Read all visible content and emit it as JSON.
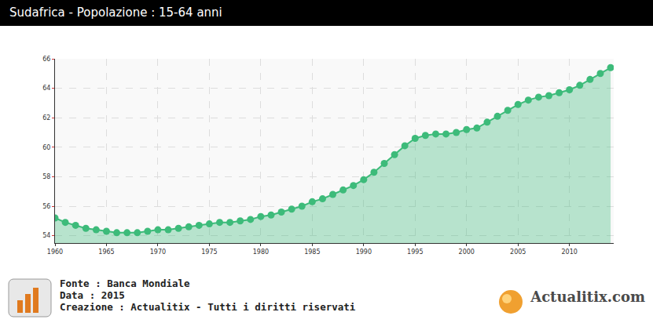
{
  "chart_data": {
    "type": "area",
    "title": "Sudafrica - Popolazione : 15-64 anni",
    "x": [
      1960,
      1961,
      1962,
      1963,
      1964,
      1965,
      1966,
      1967,
      1968,
      1969,
      1970,
      1971,
      1972,
      1973,
      1974,
      1975,
      1976,
      1977,
      1978,
      1979,
      1980,
      1981,
      1982,
      1983,
      1984,
      1985,
      1986,
      1987,
      1988,
      1989,
      1990,
      1991,
      1992,
      1993,
      1994,
      1995,
      1996,
      1997,
      1998,
      1999,
      2000,
      2001,
      2002,
      2003,
      2004,
      2005,
      2006,
      2007,
      2008,
      2009,
      2010,
      2011,
      2012,
      2013,
      2014
    ],
    "values": [
      55.2,
      54.9,
      54.7,
      54.5,
      54.4,
      54.3,
      54.2,
      54.2,
      54.2,
      54.3,
      54.4,
      54.4,
      54.5,
      54.6,
      54.7,
      54.8,
      54.9,
      54.9,
      55.0,
      55.1,
      55.3,
      55.4,
      55.6,
      55.8,
      56.0,
      56.3,
      56.5,
      56.8,
      57.1,
      57.4,
      57.8,
      58.3,
      58.9,
      59.5,
      60.1,
      60.6,
      60.8,
      60.9,
      60.9,
      61.0,
      61.2,
      61.3,
      61.7,
      62.1,
      62.5,
      62.9,
      63.2,
      63.4,
      63.5,
      63.7,
      63.9,
      64.2,
      64.6,
      65.0,
      65.4
    ],
    "color": "#3dbb7a",
    "marker": "circle",
    "xlim": [
      1960,
      2014.3
    ],
    "xticks": [
      1960,
      1965,
      1970,
      1975,
      1980,
      1985,
      1990,
      1995,
      2000,
      2005,
      2010
    ],
    "ylim": [
      53.5,
      66
    ],
    "yticks": [
      54,
      56,
      58,
      60,
      62,
      64,
      66
    ],
    "grid": true
  },
  "footer": {
    "source": "Fonte : Banca Mondiale",
    "date": "Data : 2015",
    "credit": "Creazione : Actualitix - Tutti i diritti riservati",
    "logo": "Actualitix.com"
  }
}
